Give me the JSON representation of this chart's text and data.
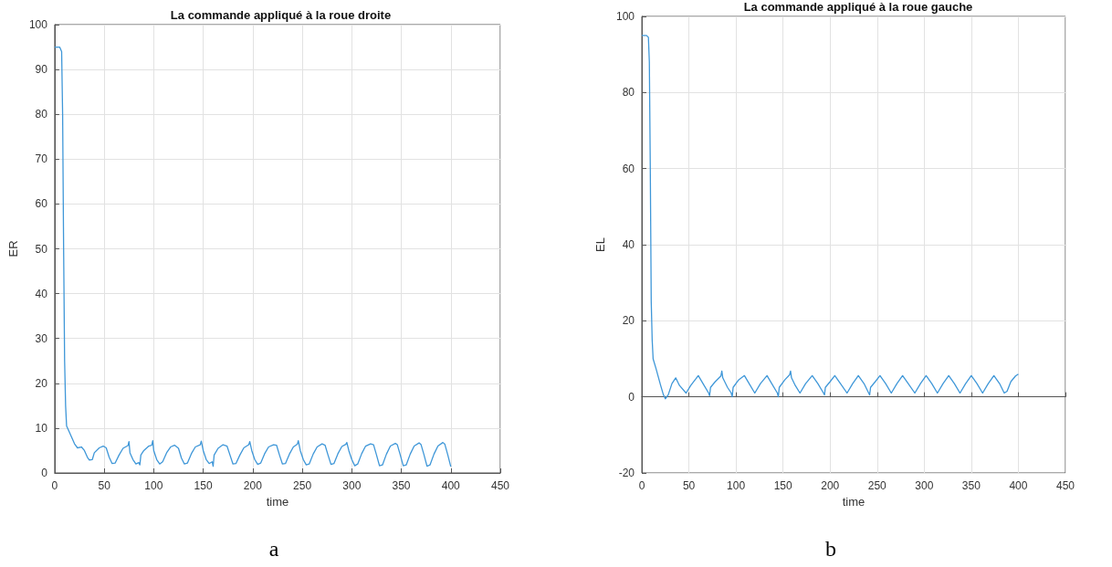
{
  "chart_data": [
    {
      "type": "line",
      "title": "La commande appliqué à la roue droite",
      "xlabel": "time",
      "ylabel": "ER",
      "annotations": [
        "a"
      ],
      "xlim": [
        0,
        450
      ],
      "xticks": [
        0,
        50,
        100,
        150,
        200,
        250,
        300,
        350,
        400,
        450
      ],
      "ylim": [
        0,
        100
      ],
      "yticks": [
        0,
        10,
        20,
        30,
        40,
        50,
        60,
        70,
        80,
        90,
        100
      ],
      "grid": true,
      "marker": "none",
      "line_style": "solid",
      "series": [
        {
          "color": "#3f97d8",
          "x": [
            0,
            5,
            7,
            8,
            9,
            10,
            11,
            12,
            15,
            20,
            23,
            27,
            30,
            33,
            35,
            38,
            40,
            45,
            49,
            52,
            55,
            58,
            61,
            65,
            69,
            74,
            75,
            76,
            79,
            82,
            85,
            86,
            87,
            90,
            95,
            98,
            99,
            100,
            103,
            106,
            109,
            113,
            117,
            121,
            125,
            128,
            131,
            134,
            138,
            142,
            147,
            148,
            150,
            153,
            156,
            159,
            160,
            161,
            165,
            170,
            174,
            177,
            180,
            183,
            187,
            191,
            196,
            197,
            199,
            202,
            205,
            208,
            212,
            216,
            221,
            224,
            227,
            230,
            233,
            237,
            241,
            245,
            246,
            248,
            251,
            254,
            257,
            261,
            265,
            270,
            273,
            276,
            279,
            282,
            286,
            290,
            294,
            295,
            297,
            300,
            303,
            306,
            310,
            314,
            319,
            322,
            325,
            328,
            331,
            335,
            339,
            344,
            346,
            349,
            352,
            355,
            359,
            363,
            368,
            370,
            373,
            376,
            379,
            383,
            387,
            392,
            394,
            397,
            400
          ],
          "values": [
            95,
            95,
            94,
            80,
            50,
            25,
            15,
            10.5,
            9,
            6.5,
            5.6,
            5.8,
            5,
            3.5,
            2.9,
            3,
            4.5,
            5.6,
            6,
            5.6,
            3.5,
            2.1,
            2.2,
            4,
            5.5,
            6.1,
            7,
            4.5,
            3,
            2,
            2.3,
            1.8,
            4,
            5,
            6,
            6.2,
            7.2,
            5,
            3,
            2,
            2.5,
            4.5,
            5.8,
            6.2,
            5.5,
            3.3,
            2,
            2.2,
            4.3,
            5.8,
            6.3,
            7.1,
            5,
            3,
            2.1,
            2.5,
            1.5,
            4,
            5.5,
            6.3,
            6,
            4,
            2,
            2.1,
            4,
            5.6,
            6.3,
            7,
            5,
            3,
            1.9,
            2.2,
            4.3,
            5.8,
            6.3,
            6.2,
            4,
            2,
            2.1,
            4.2,
            5.8,
            6.4,
            7.2,
            5,
            3,
            1.8,
            2,
            4.2,
            5.8,
            6.5,
            6.2,
            4,
            1.9,
            2.1,
            4.3,
            5.9,
            6.4,
            6.8,
            5,
            3,
            1.6,
            2,
            4.3,
            6,
            6.5,
            6.3,
            4,
            1.6,
            1.8,
            4.2,
            6,
            6.6,
            6.3,
            4,
            1.6,
            1.8,
            4.2,
            6,
            6.7,
            6.3,
            4,
            1.5,
            1.8,
            4.2,
            6,
            6.8,
            6.4,
            4,
            1.4
          ]
        }
      ]
    },
    {
      "type": "line",
      "title": "La commande appliqué à la roue gauche",
      "xlabel": "time",
      "ylabel": "EL",
      "annotations": [
        "b"
      ],
      "xlim": [
        0,
        450
      ],
      "xticks": [
        0,
        50,
        100,
        150,
        200,
        250,
        300,
        350,
        400,
        450
      ],
      "ylim": [
        -20,
        100
      ],
      "yticks": [
        -20,
        0,
        20,
        40,
        60,
        80,
        100
      ],
      "grid": true,
      "marker": "none",
      "line_style": "solid",
      "series": [
        {
          "color": "#3f97d8",
          "x": [
            0,
            5,
            7,
            8,
            9,
            10,
            11,
            12,
            15,
            20,
            23,
            25,
            28,
            32,
            36,
            40,
            47,
            52,
            60,
            65,
            71,
            72,
            73,
            78,
            84,
            85,
            86,
            91,
            95,
            96,
            97,
            103,
            109,
            114,
            120,
            126,
            133,
            138,
            144,
            145,
            146,
            152,
            157,
            158,
            159,
            163,
            168,
            174,
            181,
            187,
            193,
            194,
            195,
            200,
            205,
            211,
            218,
            224,
            230,
            236,
            241,
            242,
            243,
            248,
            253,
            259,
            265,
            271,
            277,
            283,
            290,
            296,
            302,
            308,
            314,
            320,
            326,
            332,
            338,
            344,
            350,
            356,
            362,
            368,
            374,
            380,
            385,
            388,
            392,
            397,
            400
          ],
          "values": [
            95,
            95,
            94.5,
            88,
            60,
            25,
            15,
            10,
            7.5,
            3,
            0.5,
            -0.5,
            0.5,
            3.5,
            5,
            3,
            1,
            3,
            5.6,
            3.5,
            1,
            0.3,
            2.5,
            4,
            5.5,
            6.8,
            5,
            2.5,
            1,
            0,
            2.5,
            4.5,
            5.6,
            3.5,
            1,
            3.5,
            5.6,
            3.5,
            1,
            0,
            2.5,
            4.5,
            5.8,
            6.8,
            5,
            3,
            1,
            3.5,
            5.6,
            3.5,
            1,
            0.5,
            2.5,
            4,
            5.6,
            3.5,
            1,
            3.5,
            5.6,
            3.5,
            1,
            0.5,
            2.5,
            4,
            5.6,
            3.5,
            1,
            3.5,
            5.6,
            3.5,
            1,
            3.5,
            5.6,
            3.5,
            1,
            3.5,
            5.6,
            3.5,
            1,
            3.5,
            5.6,
            3.5,
            1,
            3.5,
            5.6,
            3.5,
            1,
            1.5,
            4,
            5.5,
            6
          ]
        }
      ]
    }
  ]
}
